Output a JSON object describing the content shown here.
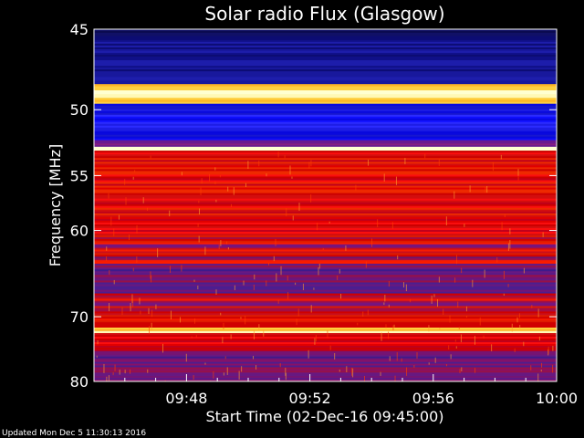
{
  "chart_data": {
    "type": "heatmap",
    "title": "Solar radio Flux (Glasgow)",
    "xlabel": "Start Time (02-Dec-16 09:45:00)",
    "ylabel": "Frequency [MHz]",
    "x_ticks": [
      "09:48",
      "09:52",
      "09:56",
      "10:00"
    ],
    "x_tick_minutes": [
      3,
      7,
      11,
      15
    ],
    "xlim_minutes": [
      0,
      15
    ],
    "y_ticks": [
      45,
      50,
      55,
      60,
      70,
      80
    ],
    "ylim": [
      45,
      80
    ],
    "y_scale": "reciprocal",
    "bands": [
      {
        "f0": 45.0,
        "f1": 45.4,
        "level": "dark"
      },
      {
        "f0": 45.4,
        "f1": 48.3,
        "level": "blue-dark"
      },
      {
        "f0": 48.3,
        "f1": 48.7,
        "level": "yellow"
      },
      {
        "f0": 48.7,
        "f1": 49.2,
        "level": "white"
      },
      {
        "f0": 49.2,
        "f1": 49.6,
        "level": "yellow"
      },
      {
        "f0": 49.6,
        "f1": 52.2,
        "level": "blue"
      },
      {
        "f0": 52.2,
        "f1": 52.7,
        "level": "purple"
      },
      {
        "f0": 52.7,
        "f1": 53.0,
        "level": "white"
      },
      {
        "f0": 53.0,
        "f1": 60.5,
        "level": "red"
      },
      {
        "f0": 60.5,
        "f1": 63.5,
        "level": "red-mixed"
      },
      {
        "f0": 63.5,
        "f1": 67.0,
        "level": "purple-red"
      },
      {
        "f0": 67.0,
        "f1": 71.5,
        "level": "red-mixed"
      },
      {
        "f0": 71.5,
        "f1": 72.0,
        "level": "yellow"
      },
      {
        "f0": 72.0,
        "f1": 72.3,
        "level": "white"
      },
      {
        "f0": 72.3,
        "f1": 75.0,
        "level": "red"
      },
      {
        "f0": 75.0,
        "f1": 80.0,
        "level": "purple-red"
      }
    ]
  },
  "footer": "Updated Mon Dec  5 11:30:13 2016"
}
